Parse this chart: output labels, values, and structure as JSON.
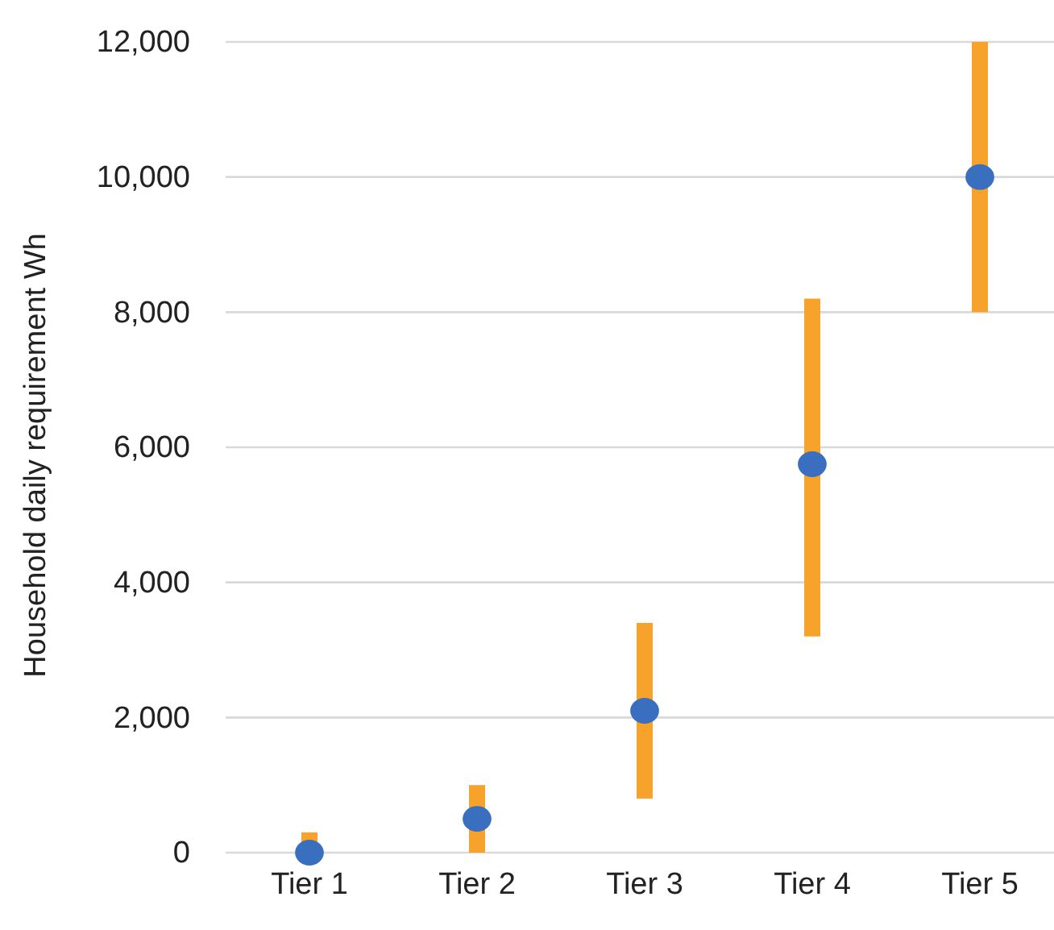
{
  "chart_data": {
    "type": "bar",
    "ylabel": "Household daily requirement Wh",
    "categories": [
      "Tier 1",
      "Tier 2",
      "Tier 3",
      "Tier 4",
      "Tier 5"
    ],
    "series": [
      {
        "type": "bar",
        "color": "#f7a32b",
        "values": [
          300,
          1000,
          2600,
          5000,
          4000
        ],
        "base": [
          0,
          0,
          800,
          3200,
          8000
        ]
      },
      {
        "type": "scatter",
        "color": "#3a6fc0",
        "x": [
          "Tier 1",
          "Tier 2",
          "Tier 3",
          "Tier 4",
          "Tier 5"
        ],
        "values": [
          0,
          500,
          2100,
          5750,
          10000
        ]
      }
    ],
    "ylim": [
      0,
      12000
    ],
    "yticks": [
      {
        "value": 0,
        "label": "0"
      },
      {
        "value": 2000,
        "label": "2,000"
      },
      {
        "value": 4000,
        "label": "4,000"
      },
      {
        "value": 6000,
        "label": "6,000"
      },
      {
        "value": 8000,
        "label": "8,000"
      },
      {
        "value": 10000,
        "label": "10,000"
      },
      {
        "value": 12000,
        "label": "12,000"
      }
    ],
    "grid": "y",
    "marker": "circle"
  }
}
